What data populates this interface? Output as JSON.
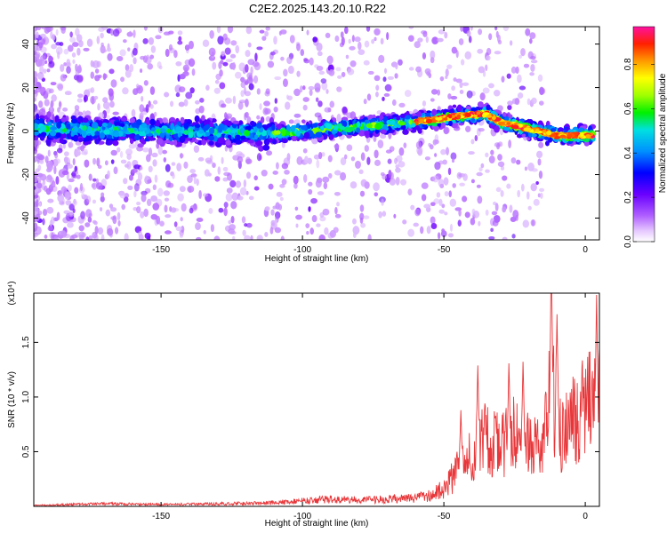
{
  "title": "C2E2.2025.143.20.10.R22",
  "chart_data": [
    {
      "type": "heatmap",
      "xlabel": "Height of straight line (km)",
      "ylabel": "Frequency (Hz)",
      "xlim": [
        -195,
        5
      ],
      "ylim": [
        -50,
        48
      ],
      "xticks": [
        -150,
        -100,
        -50,
        0
      ],
      "yticks": [
        -40,
        -20,
        0,
        20,
        40
      ],
      "ridge": [
        {
          "x": -195,
          "y": 1
        },
        {
          "x": -150,
          "y": 0
        },
        {
          "x": -110,
          "y": -1
        },
        {
          "x": -90,
          "y": 1
        },
        {
          "x": -70,
          "y": 3
        },
        {
          "x": -55,
          "y": 5
        },
        {
          "x": -45,
          "y": 7
        },
        {
          "x": -35,
          "y": 8
        },
        {
          "x": -30,
          "y": 4
        },
        {
          "x": -20,
          "y": 1
        },
        {
          "x": -10,
          "y": -2
        },
        {
          "x": 5,
          "y": -2
        }
      ],
      "colorbar": {
        "label": "Normalized spectral amplitude",
        "ticks": [
          "0.0",
          "0.2",
          "0.4",
          "0.6",
          "0.8"
        ],
        "range": [
          0,
          0.97
        ]
      }
    },
    {
      "type": "line",
      "xlabel": "Height of straight line (km)",
      "ylabel": "SNR (10 * v/v)",
      "scale_label": "(x10⁴)",
      "xlim": [
        -195,
        5
      ],
      "ylim": [
        0,
        1.95
      ],
      "xticks": [
        -150,
        -100,
        -50,
        0
      ],
      "yticks": [
        "0.5",
        "1.0",
        "1.5"
      ],
      "series": [
        {
          "color": "#e8373a",
          "envelope": [
            {
              "x": -195,
              "y": 0.01
            },
            {
              "x": -170,
              "y": 0.03
            },
            {
              "x": -150,
              "y": 0.02
            },
            {
              "x": -125,
              "y": 0.03
            },
            {
              "x": -110,
              "y": 0.04
            },
            {
              "x": -100,
              "y": 0.06
            },
            {
              "x": -90,
              "y": 0.08
            },
            {
              "x": -80,
              "y": 0.07
            },
            {
              "x": -70,
              "y": 0.08
            },
            {
              "x": -60,
              "y": 0.09
            },
            {
              "x": -55,
              "y": 0.12
            },
            {
              "x": -50,
              "y": 0.2
            },
            {
              "x": -45,
              "y": 0.4
            },
            {
              "x": -40,
              "y": 0.55
            },
            {
              "x": -35,
              "y": 0.75
            },
            {
              "x": -30,
              "y": 0.7
            },
            {
              "x": -25,
              "y": 0.8
            },
            {
              "x": -20,
              "y": 0.7
            },
            {
              "x": -15,
              "y": 0.65
            },
            {
              "x": -12,
              "y": 1.3
            },
            {
              "x": -8,
              "y": 0.75
            },
            {
              "x": -5,
              "y": 0.9
            },
            {
              "x": 0,
              "y": 1.1
            },
            {
              "x": 5,
              "y": 1.2
            }
          ],
          "peaks": [
            {
              "x": -44,
              "y": 0.75
            },
            {
              "x": -38,
              "y": 1.1
            },
            {
              "x": -27,
              "y": 1.08
            },
            {
              "x": -22,
              "y": 1.1
            },
            {
              "x": -12,
              "y": 1.93
            },
            {
              "x": -10,
              "y": 1.45
            },
            {
              "x": 4,
              "y": 1.58
            }
          ]
        }
      ]
    }
  ]
}
